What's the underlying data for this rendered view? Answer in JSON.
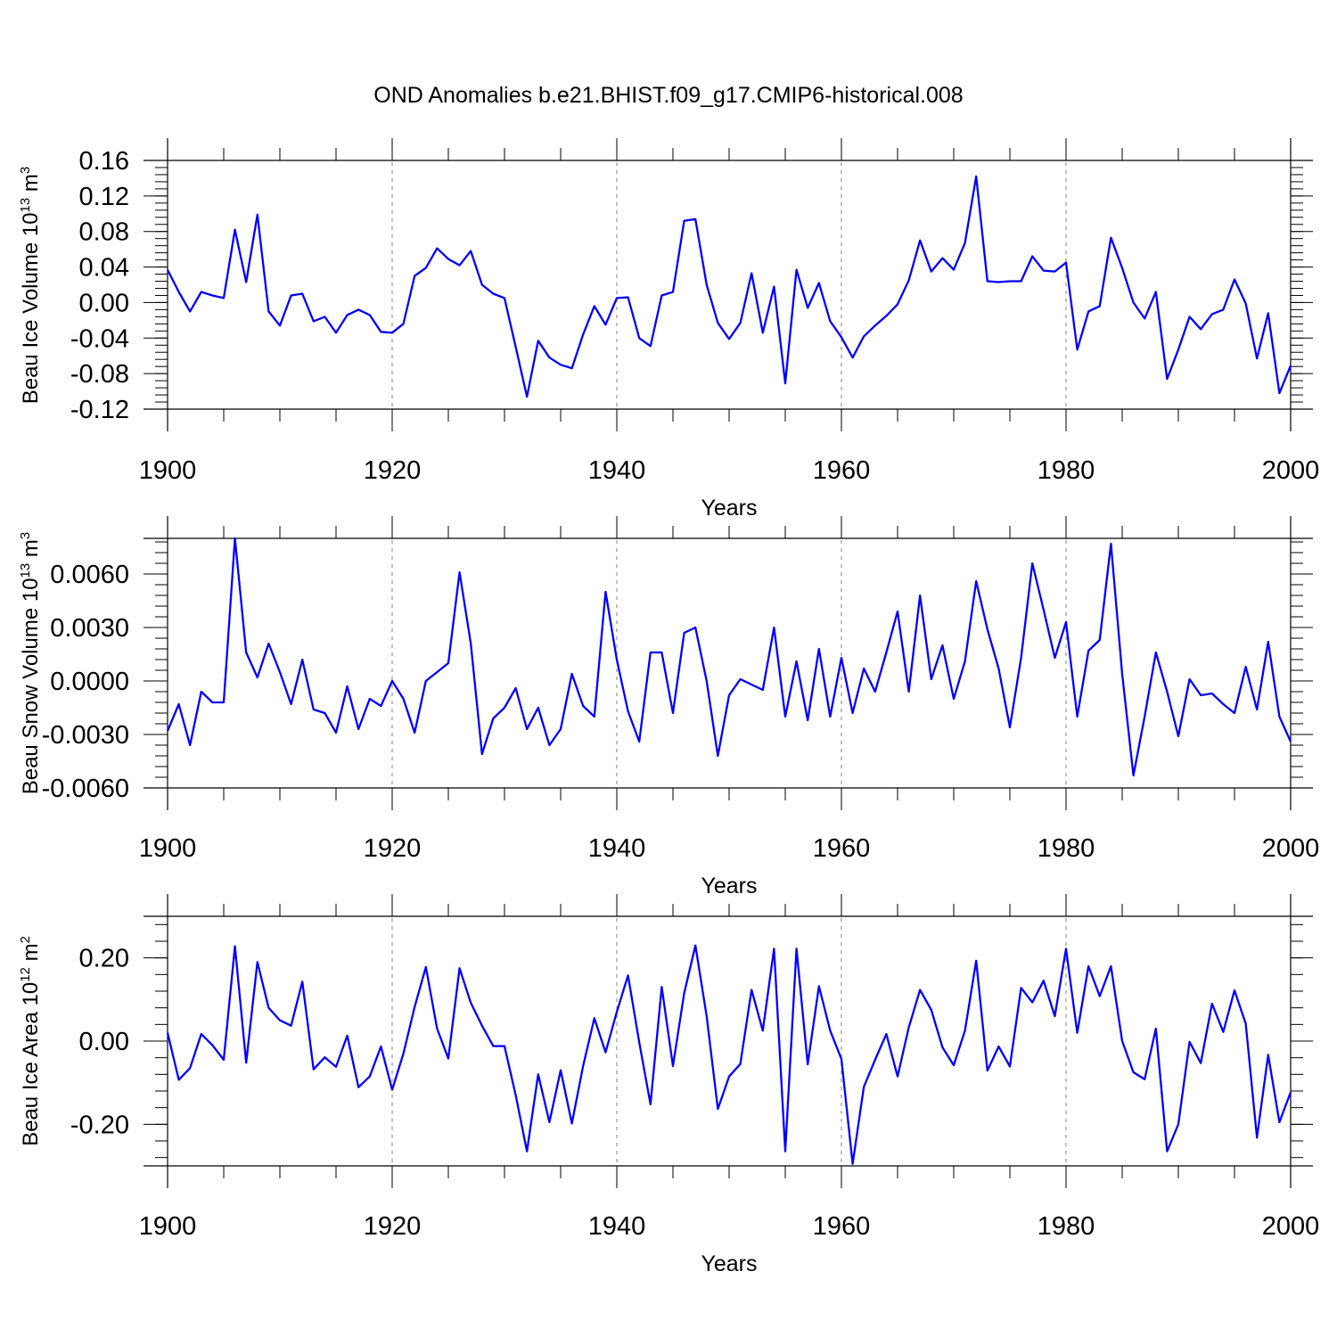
{
  "figure_title": "OND Anomalies b.e21.BHIST.f09_g17.CMIP6-historical.008",
  "colors": {
    "line": "#0000ff",
    "grid": "#808080",
    "axes": "#000000"
  },
  "chart_data": [
    {
      "type": "line",
      "xlabel": "Years",
      "ylabel": "Beau Ice Volume 10",
      "ylabel_sup": "13",
      "ylabel_unit": " m",
      "ylabel_unit_sup": "3",
      "xlim": [
        1900,
        2000
      ],
      "ylim": [
        -0.12,
        0.16
      ],
      "x_tick_labels": [
        "1900",
        "1920",
        "1940",
        "1960",
        "1980",
        "2000"
      ],
      "y_tick_values": [
        -0.12,
        -0.08,
        -0.04,
        0.0,
        0.04,
        0.08,
        0.12,
        0.16
      ],
      "y_tick_labels": [
        "-0.12",
        "-0.08",
        "-0.04",
        "0.00",
        "0.04",
        "0.08",
        "0.12",
        "0.16"
      ],
      "x_start": 1900,
      "values": [
        0.037,
        0.012,
        -0.01,
        0.012,
        0.008,
        0.005,
        0.082,
        0.023,
        0.099,
        -0.01,
        -0.026,
        0.008,
        0.01,
        -0.021,
        -0.016,
        -0.034,
        -0.014,
        -0.008,
        -0.014,
        -0.033,
        -0.034,
        -0.024,
        0.03,
        0.039,
        0.061,
        0.049,
        0.042,
        0.058,
        0.02,
        0.01,
        0.005,
        -0.05,
        -0.106,
        -0.043,
        -0.062,
        -0.07,
        -0.074,
        -0.036,
        -0.004,
        -0.025,
        0.005,
        0.006,
        -0.04,
        -0.049,
        0.008,
        0.012,
        0.092,
        0.094,
        0.02,
        -0.023,
        -0.041,
        -0.023,
        0.033,
        -0.034,
        0.018,
        -0.091,
        0.037,
        -0.006,
        0.022,
        -0.021,
        -0.039,
        -0.062,
        -0.038,
        -0.026,
        -0.015,
        -0.002,
        0.025,
        0.07,
        0.035,
        0.05,
        0.037,
        0.067,
        0.142,
        0.024,
        0.023,
        0.024,
        0.024,
        0.052,
        0.036,
        0.035,
        0.045,
        -0.053,
        -0.01,
        -0.004,
        0.073,
        0.039,
        0.0,
        -0.018,
        0.012,
        -0.086,
        -0.053,
        -0.016,
        -0.03,
        -0.013,
        -0.008,
        0.026,
        -0.001,
        -0.063,
        -0.012,
        -0.102,
        -0.071
      ]
    },
    {
      "type": "line",
      "xlabel": "Years",
      "ylabel": "Beau Snow Volume 10",
      "ylabel_sup": "13",
      "ylabel_unit": " m",
      "ylabel_unit_sup": "3",
      "xlim": [
        1900,
        2000
      ],
      "ylim": [
        -0.006,
        0.008
      ],
      "x_tick_labels": [
        "1900",
        "1920",
        "1940",
        "1960",
        "1980",
        "2000"
      ],
      "y_tick_values": [
        -0.006,
        -0.003,
        0.0,
        0.003,
        0.006
      ],
      "y_tick_labels": [
        "-0.0060",
        "-0.0030",
        "0.0000",
        "0.0030",
        "0.0060"
      ],
      "x_start": 1900,
      "values": [
        -0.0028,
        -0.0013,
        -0.0036,
        -0.0006,
        -0.0012,
        -0.0012,
        0.008,
        0.0016,
        0.0002,
        0.0021,
        0.0005,
        -0.0013,
        0.0012,
        -0.0016,
        -0.0018,
        -0.0029,
        -0.0003,
        -0.0027,
        -0.001,
        -0.0014,
        0.0,
        -0.001,
        -0.0029,
        0.0,
        0.0005,
        0.001,
        0.0061,
        0.0021,
        -0.0041,
        -0.0021,
        -0.0015,
        -0.0004,
        -0.0027,
        -0.0015,
        -0.0036,
        -0.0027,
        0.0004,
        -0.0014,
        -0.002,
        0.005,
        0.0012,
        -0.0017,
        -0.0034,
        0.0016,
        0.0016,
        -0.0018,
        0.0027,
        0.003,
        0.0,
        -0.0042,
        -0.0008,
        0.0001,
        -0.0002,
        -0.0005,
        0.003,
        -0.002,
        0.0011,
        -0.0022,
        0.0018,
        -0.002,
        0.0013,
        -0.0018,
        0.0007,
        -0.0006,
        0.0016,
        0.0039,
        -0.0006,
        0.0048,
        0.0001,
        0.002,
        -0.001,
        0.0011,
        0.0056,
        0.0029,
        0.0007,
        -0.0026,
        0.0013,
        0.0066,
        0.004,
        0.0013,
        0.0033,
        -0.002,
        0.0017,
        0.0023,
        0.0077,
        0.0004,
        -0.0053,
        -0.002,
        0.0016,
        -0.0006,
        -0.0031,
        0.0001,
        -0.0008,
        -0.0007,
        -0.0013,
        -0.0018,
        0.0008,
        -0.0016,
        0.0022,
        -0.002,
        -0.0034
      ]
    },
    {
      "type": "line",
      "xlabel": "Years",
      "ylabel": "Beau Ice Area 10",
      "ylabel_sup": "12",
      "ylabel_unit": " m",
      "ylabel_unit_sup": "2",
      "xlim": [
        1900,
        2000
      ],
      "ylim": [
        -0.3,
        0.3
      ],
      "x_tick_labels": [
        "1900",
        "1920",
        "1940",
        "1960",
        "1980",
        "2000"
      ],
      "y_tick_values": [
        -0.2,
        0.0,
        0.2
      ],
      "y_tick_labels": [
        "-0.20",
        "0.00",
        "0.20"
      ],
      "x_start": 1900,
      "values": [
        0.02,
        -0.093,
        -0.065,
        0.017,
        -0.01,
        -0.045,
        0.228,
        -0.052,
        0.19,
        0.08,
        0.05,
        0.037,
        0.143,
        -0.068,
        -0.039,
        -0.062,
        0.013,
        -0.111,
        -0.085,
        -0.013,
        -0.117,
        -0.03,
        0.082,
        0.178,
        0.03,
        -0.042,
        0.175,
        0.092,
        0.037,
        -0.012,
        -0.012,
        -0.13,
        -0.265,
        -0.08,
        -0.195,
        -0.07,
        -0.198,
        -0.06,
        0.055,
        -0.027,
        0.07,
        0.158,
        -0.003,
        -0.152,
        0.13,
        -0.06,
        0.115,
        0.23,
        0.06,
        -0.163,
        -0.085,
        -0.055,
        0.123,
        0.025,
        0.222,
        -0.265,
        0.222,
        -0.056,
        0.132,
        0.025,
        -0.043,
        -0.295,
        -0.11,
        -0.045,
        0.017,
        -0.085,
        0.033,
        0.123,
        0.075,
        -0.015,
        -0.058,
        0.025,
        0.193,
        -0.071,
        -0.013,
        -0.061,
        0.128,
        0.093,
        0.145,
        0.06,
        0.222,
        0.02,
        0.18,
        0.108,
        0.18,
        0.0,
        -0.075,
        -0.092,
        0.03,
        -0.265,
        -0.2,
        -0.002,
        -0.053,
        0.09,
        0.022,
        0.122,
        0.042,
        -0.232,
        -0.033,
        -0.195,
        -0.123
      ]
    }
  ]
}
